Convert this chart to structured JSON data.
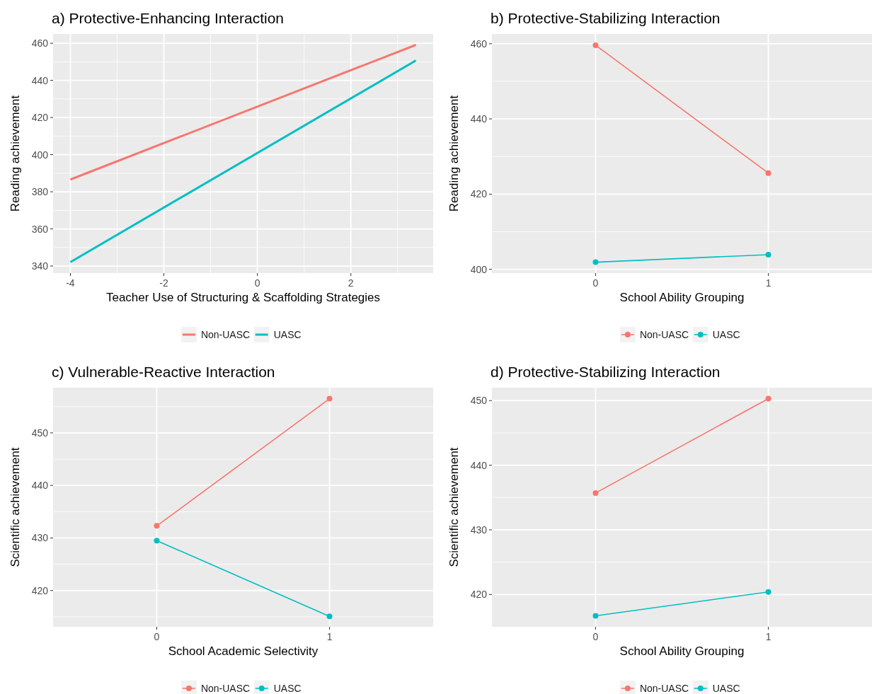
{
  "chart_data": [
    {
      "type": "line",
      "title": "a) Protective-Enhancing Interaction",
      "xlabel": "Teacher Use of Structuring & Scaffolding Strategies",
      "ylabel": "Reading achievement",
      "xlim": [
        -4.37,
        3.76
      ],
      "xticks": [
        -4,
        -2,
        0,
        2
      ],
      "ylim": [
        336.2,
        465.0
      ],
      "yticks": [
        340,
        360,
        380,
        400,
        420,
        440,
        460
      ],
      "grid": true,
      "legend": "bottom",
      "marker": "none",
      "x": [
        -4,
        3.39
      ],
      "series": [
        {
          "name": "Non-UASC",
          "color": "#f8766d",
          "values": [
            386.6,
            459.1
          ]
        },
        {
          "name": "UASC",
          "color": "#00bfc4",
          "values": [
            342.1,
            450.7
          ]
        }
      ]
    },
    {
      "type": "line",
      "title": "b) Protective-Stabilizing Interaction",
      "xlabel": "School Ability Grouping",
      "ylabel": "Reading achievement",
      "categories": [
        "0",
        "1"
      ],
      "ylim": [
        399.0,
        462.6
      ],
      "yticks": [
        400,
        420,
        440,
        460
      ],
      "grid": true,
      "legend": "bottom",
      "marker": "circle",
      "series": [
        {
          "name": "Non-UASC",
          "color": "#f8766d",
          "values": [
            459.6,
            425.6
          ]
        },
        {
          "name": "UASC",
          "color": "#00bfc4",
          "values": [
            401.9,
            403.9
          ]
        }
      ]
    },
    {
      "type": "line",
      "title": "c) Vulnerable-Reactive Interaction",
      "xlabel": "School Academic Selectivity",
      "ylabel": "Scientific achievement",
      "categories": [
        "0",
        "1"
      ],
      "ylim": [
        413.1,
        458.6
      ],
      "yticks": [
        420,
        430,
        440,
        450
      ],
      "grid": true,
      "legend": "bottom",
      "marker": "circle",
      "series": [
        {
          "name": "Non-UASC",
          "color": "#f8766d",
          "values": [
            432.3,
            456.5
          ]
        },
        {
          "name": "UASC",
          "color": "#00bfc4",
          "values": [
            429.5,
            415.1
          ]
        }
      ]
    },
    {
      "type": "line",
      "title": "d) Protective-Stabilizing Interaction",
      "xlabel": "School Ability Grouping",
      "ylabel": "Scientific achievement",
      "categories": [
        "0",
        "1"
      ],
      "ylim": [
        415.0,
        452.0
      ],
      "yticks": [
        420,
        430,
        440,
        450
      ],
      "grid": true,
      "legend": "bottom",
      "marker": "circle",
      "series": [
        {
          "name": "Non-UASC",
          "color": "#f8766d",
          "values": [
            435.7,
            450.3
          ]
        },
        {
          "name": "UASC",
          "color": "#00bfc4",
          "values": [
            416.7,
            420.4
          ]
        }
      ]
    }
  ]
}
